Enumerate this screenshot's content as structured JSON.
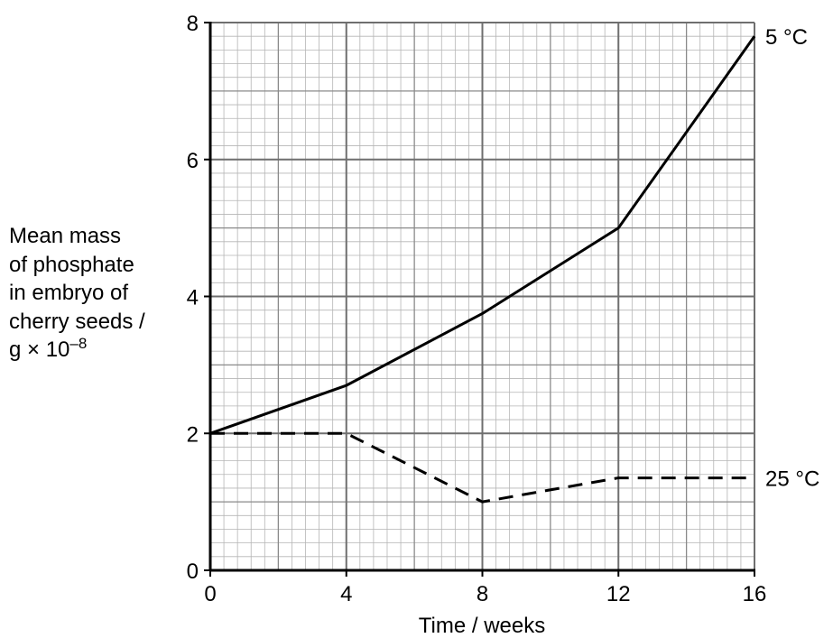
{
  "chart_data": {
    "type": "line",
    "xlabel": "Time / weeks",
    "ylabel_lines": [
      "Mean mass",
      "of phosphate",
      "in embryo of",
      "cherry seeds /"
    ],
    "ylabel_unit_base": "g × 10",
    "ylabel_unit_exp": "–8",
    "x_ticks": [
      0,
      4,
      8,
      12,
      16
    ],
    "y_ticks": [
      0,
      2,
      4,
      6,
      8
    ],
    "xlim": [
      0,
      16
    ],
    "ylim": [
      0,
      8
    ],
    "grid": true,
    "series": [
      {
        "name": "5 °C",
        "style": "solid",
        "x": [
          0,
          4,
          8,
          12,
          16
        ],
        "y": [
          2.0,
          2.7,
          3.75,
          5.0,
          7.8
        ]
      },
      {
        "name": "25 °C",
        "style": "dashed",
        "x": [
          0,
          4,
          8,
          12,
          16
        ],
        "y": [
          2.0,
          2.0,
          1.0,
          1.35,
          1.35
        ]
      }
    ]
  }
}
